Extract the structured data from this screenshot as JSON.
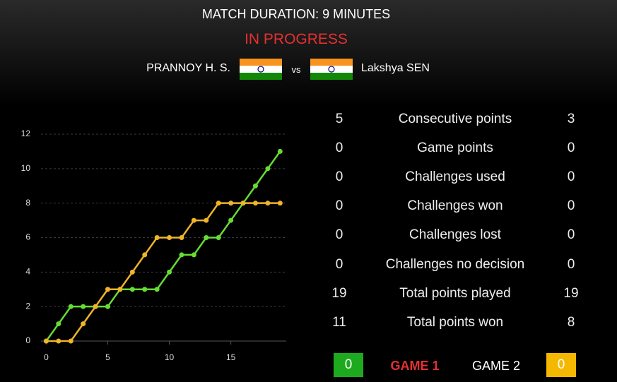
{
  "header": {
    "title": "MATCH DURATION: 9 MINUTES",
    "status": "IN PROGRESS",
    "player1": "PRANNOY H. S.",
    "vs": "vs",
    "player2": "Lakshya SEN"
  },
  "stats": [
    [
      "5",
      "Consecutive points",
      "3"
    ],
    [
      "0",
      "Game points",
      "0"
    ],
    [
      "0",
      "Challenges used",
      "0"
    ],
    [
      "0",
      "Challenges won",
      "0"
    ],
    [
      "0",
      "Challenges lost",
      "0"
    ],
    [
      "0",
      "Challenges no decision",
      "0"
    ],
    [
      "19",
      "Total points played",
      "19"
    ],
    [
      "11",
      "Total points won",
      "8"
    ]
  ],
  "games": {
    "game1_score": "0",
    "game1": "GAME 1",
    "game2": "GAME 2",
    "game2_score": "0"
  },
  "chart_data": {
    "type": "line",
    "x": [
      0,
      1,
      2,
      3,
      4,
      5,
      6,
      7,
      8,
      9,
      10,
      11,
      12,
      13,
      14,
      15,
      16,
      17,
      18,
      19
    ],
    "series": [
      {
        "name": "PRANNOY H. S.",
        "color": "#66dd33",
        "values": [
          0,
          1,
          2,
          2,
          2,
          2,
          3,
          3,
          3,
          3,
          4,
          5,
          5,
          6,
          6,
          7,
          8,
          9,
          10,
          11
        ]
      },
      {
        "name": "Lakshya SEN",
        "color": "#f0b429",
        "values": [
          0,
          0,
          0,
          1,
          2,
          3,
          3,
          4,
          5,
          6,
          6,
          6,
          7,
          7,
          8,
          8,
          8,
          8,
          8,
          8
        ]
      }
    ],
    "xlim": [
      -1,
      19.5
    ],
    "ylim": [
      0,
      12
    ],
    "xticks": [
      0,
      5,
      10,
      15
    ],
    "yticks": [
      0,
      2,
      4,
      6,
      8,
      10,
      12
    ],
    "grid": true
  }
}
